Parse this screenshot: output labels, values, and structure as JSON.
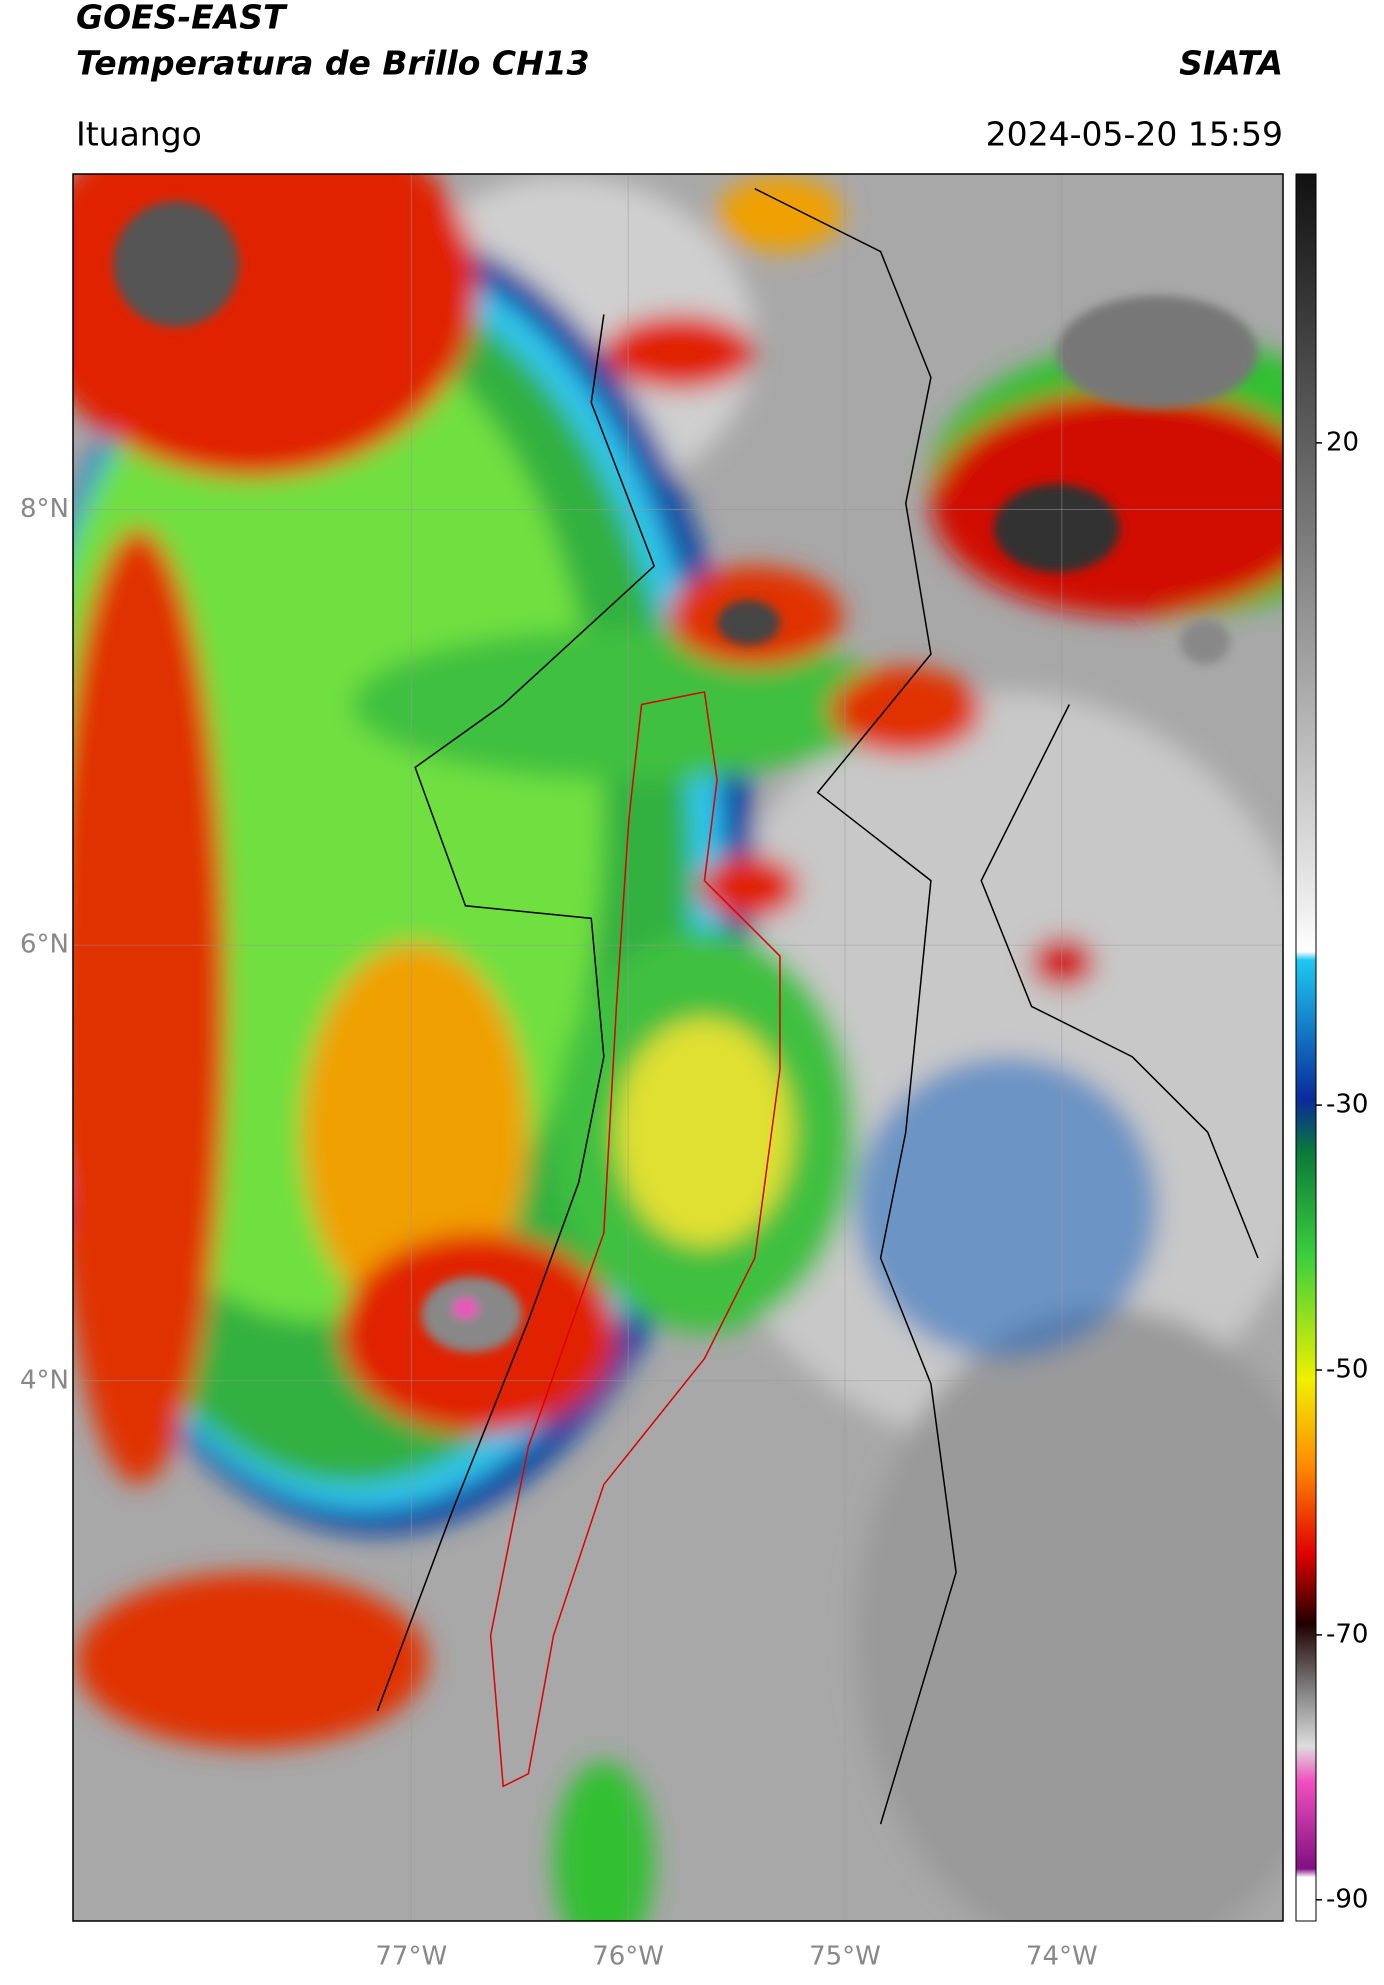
{
  "header": {
    "title": "GOES-EAST",
    "subtitle": "Temperatura de Brillo CH13",
    "source": "SIATA",
    "location": "Ituango",
    "datetime": "2024-05-20 15:59"
  },
  "map": {
    "extent": {
      "lon": [
        -78.56,
        -72.98
      ],
      "lat": [
        1.52,
        9.54
      ]
    },
    "lat_ticks": [
      {
        "value": 8,
        "label": "8°N"
      },
      {
        "value": 6,
        "label": "6°N"
      },
      {
        "value": 4,
        "label": "4°N"
      }
    ],
    "lon_ticks": [
      {
        "value": -77,
        "label": "77°W"
      },
      {
        "value": -76,
        "label": "76°W"
      },
      {
        "value": -75,
        "label": "75°W"
      },
      {
        "value": -74,
        "label": "74°W"
      }
    ]
  },
  "colorbar": {
    "range": [
      -91.6,
      40.3
    ],
    "ticks": [
      20,
      -30,
      -50,
      -70,
      -90
    ]
  }
}
